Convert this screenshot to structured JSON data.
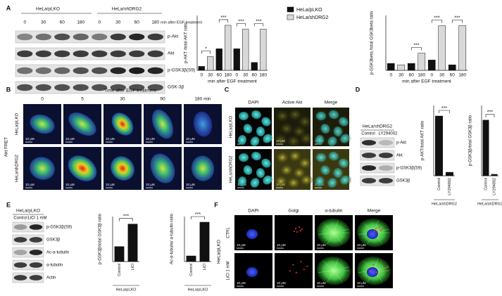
{
  "panels": [
    "A",
    "B",
    "C",
    "D",
    "E",
    "F"
  ],
  "blots": {
    "A": {
      "groups": [
        "HeLa/pLKO",
        "HeLa/shDRG2"
      ],
      "lanes": [
        "0",
        "30",
        "60",
        "180",
        "0",
        "30",
        "60",
        "180"
      ],
      "lane_unit": "min after EGF treatment",
      "rows": [
        "p-Akt",
        "Akt",
        "p-GSK3β(S9)",
        "GSK-3β"
      ]
    },
    "D": {
      "group": "HeLa/shDRG2",
      "lanes": [
        "Control",
        "LY294002"
      ],
      "rows": [
        "p-Akt",
        "Akt",
        "p-GSK3β(S9)",
        "GSK3β"
      ]
    },
    "E": {
      "group": "HeLa/pLKO",
      "lanes": [
        "Control",
        "LiCl 1 mM"
      ],
      "rows": [
        "p-GSK3β(S9)",
        "GSK3β",
        "Ac-α-tubulin",
        "α-tubulin",
        "Actin"
      ]
    }
  },
  "imaging": {
    "B": {
      "title": "Time after EGF treatment",
      "columns": [
        "0",
        "5",
        "30",
        "90",
        "180 min"
      ],
      "rows": [
        "HeLa/pLKO",
        "HeLa/shDRG2"
      ],
      "side_label": "Akt FRET",
      "scale": "10 μM"
    },
    "C": {
      "columns": [
        "DAPI",
        "Active Akt",
        "Merge"
      ],
      "rows": [
        "HeLa/pLKO",
        "HeLa/shDRG2"
      ],
      "scale": "10 μM"
    },
    "F": {
      "columns": [
        "DAPI",
        "Golgi",
        "α-tubulin",
        "Merge"
      ],
      "rows": [
        "CTRL",
        "LiCl 1 mM"
      ],
      "group": "HeLa/pLKO",
      "scale": "10 μM"
    }
  },
  "chart_data": [
    {
      "type": "bar",
      "y_label": "p-AKT /total AKT ratio",
      "x_label": "min after EGF treatment",
      "categories": [
        "0",
        "30",
        "60",
        "180",
        "0",
        "30",
        "60",
        "180"
      ],
      "series": [
        {
          "name": "HeLa/pLKO",
          "color": "#111111",
          "values": [
            0.1,
            null,
            0.55,
            null,
            0.55,
            null,
            0.2,
            null
          ]
        },
        {
          "name": "HeLa/shDRG2",
          "color": "#d9d9d9",
          "values": [
            null,
            0.35,
            null,
            1.15,
            null,
            1.05,
            null,
            1.05
          ]
        }
      ],
      "ylim": [
        0,
        1.4
      ],
      "annotations": [
        "*",
        "***",
        "***",
        "***"
      ]
    },
    {
      "type": "bar",
      "y_label": "p-GSK3beta /total GSK3beta ratio",
      "x_label": "min after EGF treatment",
      "categories": [
        "0",
        "30",
        "60",
        "180",
        "0",
        "30",
        "60",
        "180"
      ],
      "series": [
        {
          "color": "#111111",
          "values": [
            0.1,
            null,
            0.1,
            null,
            0.15,
            null,
            0.08,
            null
          ]
        },
        {
          "color": "#d9d9d9",
          "values": [
            null,
            0.08,
            null,
            0.25,
            null,
            0.65,
            null,
            0.65
          ]
        }
      ],
      "ylim": [
        0,
        0.8
      ],
      "annotations": [
        "***",
        "***",
        "***"
      ]
    },
    {
      "type": "bar",
      "y_label": "p-AKT/total AKT ratio",
      "x_label": "HeLa/shDRG2",
      "categories": [
        "Control",
        "LY294002"
      ],
      "series": [
        {
          "color": "#111111",
          "values": [
            0.85,
            0.05
          ]
        }
      ],
      "ylim": [
        0,
        1.0
      ],
      "annotations": [
        "***"
      ]
    },
    {
      "type": "bar",
      "y_label": "p-GSK3β/total GSK3β ratio",
      "x_label": "HeLa/shDRG2",
      "categories": [
        "Control",
        "LY294002"
      ],
      "series": [
        {
          "color": "#111111",
          "values": [
            1.9,
            0.05
          ]
        }
      ],
      "ylim": [
        0,
        2.4
      ],
      "annotations": [
        "***"
      ]
    },
    {
      "type": "bar",
      "y_label": "p-GSK3β/total GSK3β ratio",
      "x_label": "HeLa/pLKO",
      "categories": [
        "Control",
        "LiCl"
      ],
      "series": [
        {
          "color": "#111111",
          "values": [
            0.4,
            1.0
          ]
        }
      ],
      "ylim": [
        0,
        1.2
      ],
      "annotations": [
        "***"
      ]
    },
    {
      "type": "bar",
      "y_label": "Ac-α-tubulin/ α-tubulin ratio",
      "x_label": "HeLa/pLKO",
      "categories": [
        "Control",
        "LiCl"
      ],
      "series": [
        {
          "color": "#111111",
          "values": [
            0.3,
            2.1
          ]
        }
      ],
      "ylim": [
        0,
        2.4
      ],
      "annotations": [
        "***"
      ]
    }
  ]
}
